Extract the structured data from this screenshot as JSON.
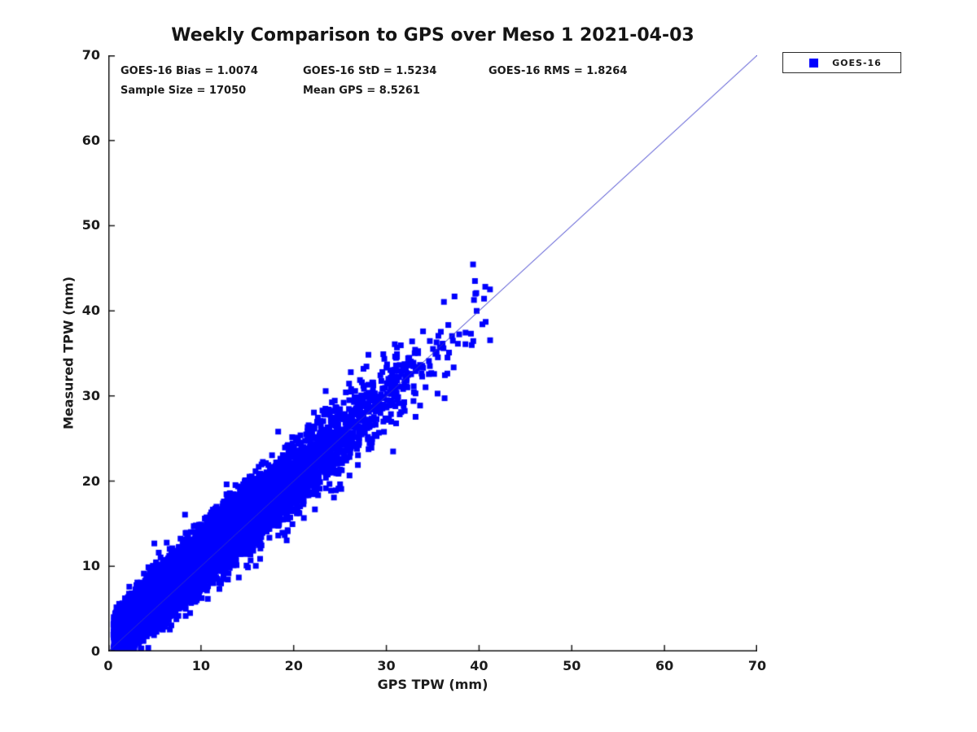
{
  "chart_data": {
    "type": "scatter",
    "title": "Weekly Comparison to GPS over Meso 1 2021-04-03",
    "xlabel": "GPS TPW (mm)",
    "ylabel": "Measured TPW (mm)",
    "xlim": [
      0,
      70
    ],
    "ylim": [
      0,
      70
    ],
    "xticks": [
      0,
      10,
      20,
      30,
      40,
      50,
      60,
      70
    ],
    "yticks": [
      0,
      10,
      20,
      30,
      40,
      50,
      60,
      70
    ],
    "grid": false,
    "axis_color": "#1c1c1c",
    "legend": {
      "position": "outside-top-right",
      "entries": [
        "GOES-16"
      ]
    },
    "stats": {
      "bias": 1.0074,
      "std": 1.5234,
      "rms": 1.8264,
      "sample_size": 17050,
      "mean_gps": 8.5261
    },
    "annotations": [
      {
        "id": "bias",
        "text": "GOES-16 Bias = 1.0074"
      },
      {
        "id": "std",
        "text": "GOES-16 StD = 1.5234"
      },
      {
        "id": "rms",
        "text": "GOES-16 RMS = 1.8264"
      },
      {
        "id": "sample",
        "text": "Sample Size = 17050"
      },
      {
        "id": "mean_gps",
        "text": "Mean GPS = 8.5261"
      }
    ],
    "reference_line": {
      "x": [
        0,
        70
      ],
      "y": [
        0,
        70
      ],
      "color": "#2e2ec8",
      "width": 1
    },
    "series": [
      {
        "name": "GOES-16",
        "color": "#0000fe",
        "marker": "square",
        "marker_size": 7,
        "n_points": 17050,
        "points_model": {
          "comment": "17050 GOES-16 vs GPS TPW pairs, dense cloud along 1:1 line from (0.6,1.5) to (42,40.5); x ~ 0.45+Gamma(shape,scale) clipped, y = x + bias(x) + N(0, sd(x)) with rare outliers; deterministic seed reproduces the cloud",
          "seed": 20210403,
          "n": 17050,
          "gamma_shape": 1.65,
          "gamma_scale": 4.9,
          "x_offset": 0.45,
          "x_min": 0.55,
          "x_max": 42.2,
          "bias_intercept": 1.35,
          "bias_slope": -0.045,
          "sd_intercept": 1.05,
          "sd_slope": 0.05,
          "outlier_prob": 0.004,
          "outlier_sd": 3.5,
          "y_min": 0.35
        }
      }
    ]
  }
}
